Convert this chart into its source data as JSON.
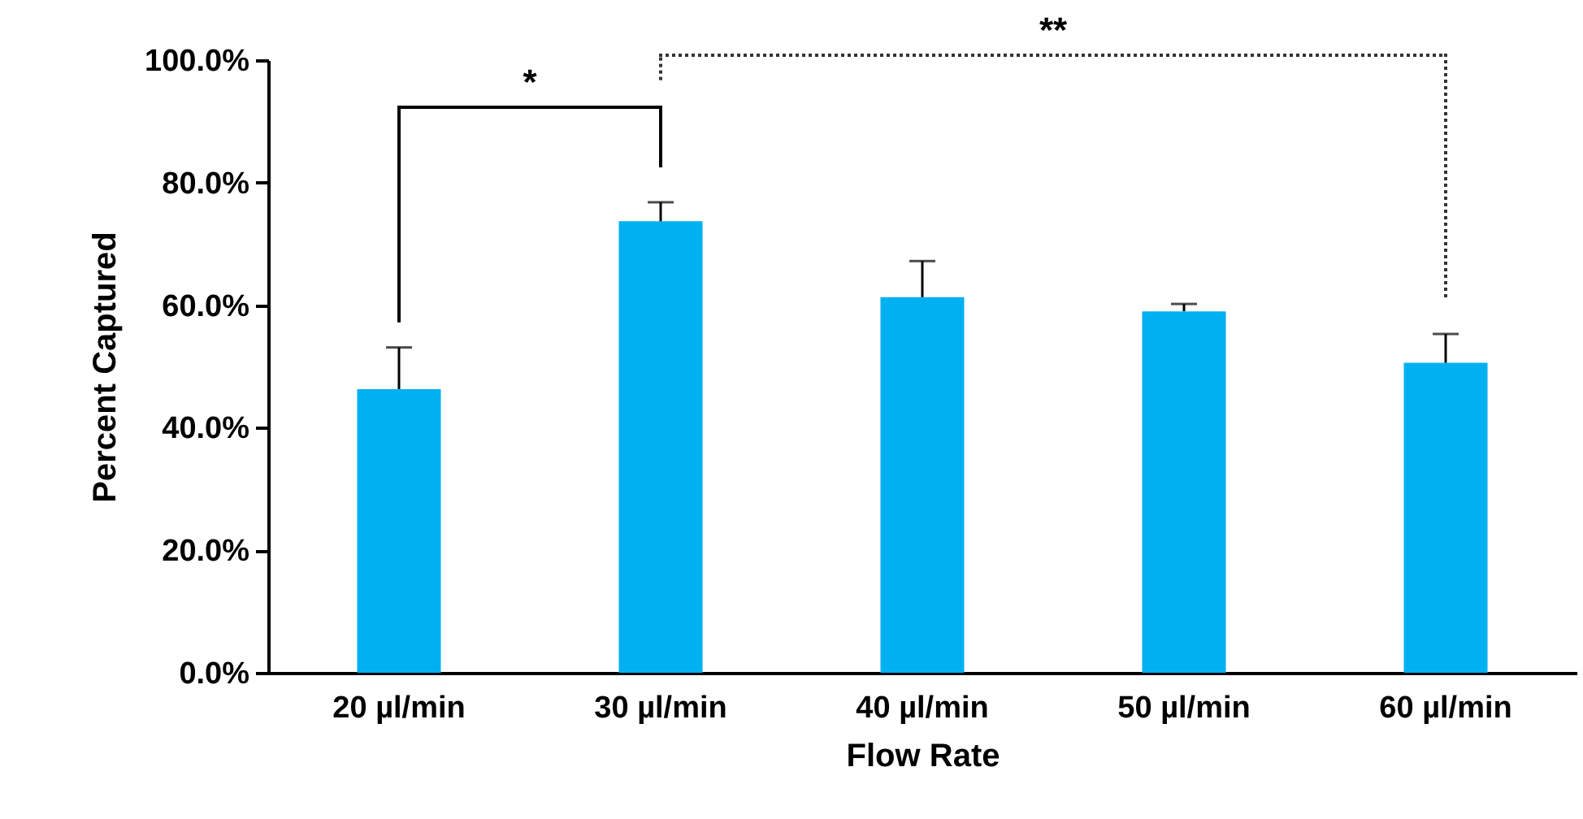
{
  "chart_data": {
    "type": "bar",
    "xlabel": "Flow Rate",
    "ylabel": "Percent Captured",
    "categories": [
      "20 µl/min",
      "30 µl/min",
      "40 µl/min",
      "50 µl/min",
      "60 µl/min"
    ],
    "values": [
      46.3,
      73.7,
      61.3,
      59.0,
      50.6
    ],
    "color": "#00b0f0",
    "errors": [
      [
        46.3,
        53.1
      ],
      [
        73.7,
        76.8
      ],
      [
        61.3,
        67.2
      ],
      [
        59.0,
        60.2
      ],
      [
        50.6,
        55.3
      ]
    ],
    "ylim": [
      0,
      100
    ],
    "yticks": [
      {
        "value": 0,
        "label": "0.0%"
      },
      {
        "value": 20,
        "label": "20.0%"
      },
      {
        "value": 40,
        "label": "40.0%"
      },
      {
        "value": 60,
        "label": "60.0%"
      },
      {
        "value": 80,
        "label": "80.0%"
      },
      {
        "value": 100,
        "label": "100.0%"
      }
    ],
    "grid": false,
    "annotations": [
      "*",
      "**"
    ]
  }
}
